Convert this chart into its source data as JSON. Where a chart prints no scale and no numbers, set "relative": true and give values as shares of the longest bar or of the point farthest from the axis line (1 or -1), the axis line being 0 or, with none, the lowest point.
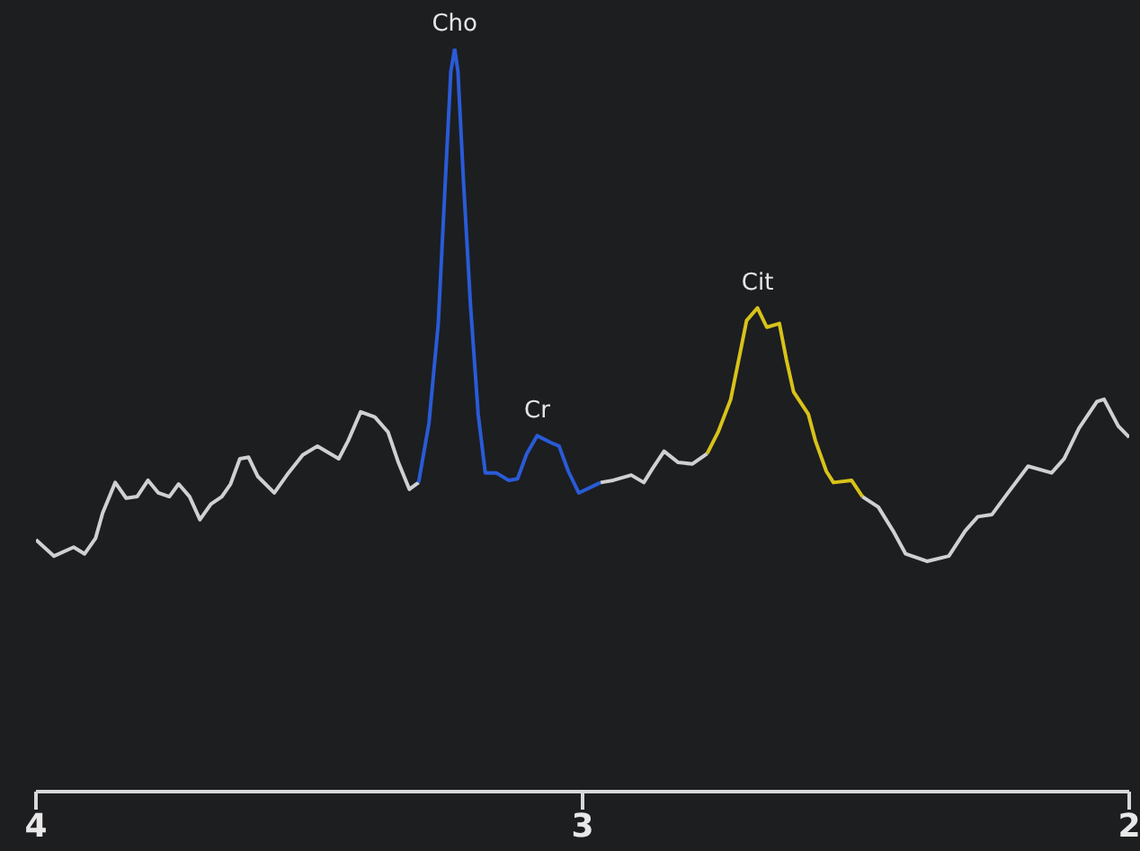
{
  "chart_data": {
    "type": "line",
    "relative": true,
    "xlim": [
      4,
      2
    ],
    "xticks": [
      4,
      3,
      2
    ],
    "marker": "none",
    "grid": false,
    "legend": false,
    "annotations": [
      {
        "text": "Cho",
        "x": 3.234,
        "y": 1
      },
      {
        "text": "Cr",
        "x": 3.083,
        "y": 0.479
      },
      {
        "text": "Cit",
        "x": 2.68,
        "y": 0.651
      }
    ],
    "series": [
      {
        "color": "#d0d0d0",
        "x": [
          4.0,
          3.967,
          3.931,
          3.911,
          3.891,
          3.878,
          3.855,
          3.835,
          3.815,
          3.795,
          3.776,
          3.756,
          3.739,
          3.719,
          3.7,
          3.68,
          3.66,
          3.644,
          3.627,
          3.611,
          3.594,
          3.564,
          3.538,
          3.512,
          3.485,
          3.446,
          3.429,
          3.406,
          3.38,
          3.356,
          3.337,
          3.317,
          3.3
        ],
        "values": [
          0.339,
          0.317,
          0.329,
          0.32,
          0.341,
          0.375,
          0.416,
          0.395,
          0.397,
          0.419,
          0.402,
          0.397,
          0.414,
          0.397,
          0.366,
          0.387,
          0.397,
          0.414,
          0.448,
          0.45,
          0.424,
          0.402,
          0.429,
          0.453,
          0.465,
          0.448,
          0.472,
          0.511,
          0.504,
          0.484,
          0.443,
          0.407,
          0.416
        ]
      },
      {
        "color": "#2a5bd7",
        "x": [
          3.3,
          3.281,
          3.264,
          3.251,
          3.241,
          3.234,
          3.228,
          3.218,
          3.205,
          3.191,
          3.178,
          3.158,
          3.135,
          3.119,
          3.102,
          3.083,
          3.059,
          3.043,
          3.026,
          3.007,
          2.967
        ],
        "values": [
          0.416,
          0.496,
          0.63,
          0.823,
          0.969,
          1,
          0.969,
          0.823,
          0.654,
          0.508,
          0.429,
          0.429,
          0.419,
          0.421,
          0.455,
          0.479,
          0.47,
          0.465,
          0.431,
          0.402,
          0.416
        ]
      },
      {
        "color": "#d0d0d0",
        "x": [
          2.967,
          2.944,
          2.911,
          2.888,
          2.871,
          2.851,
          2.825,
          2.799,
          2.772
        ],
        "values": [
          0.416,
          0.419,
          0.426,
          0.416,
          0.436,
          0.458,
          0.443,
          0.441,
          0.455
        ]
      },
      {
        "color": "#d8c21a",
        "x": [
          2.772,
          2.752,
          2.729,
          2.713,
          2.7,
          2.68,
          2.663,
          2.64,
          2.627,
          2.614,
          2.587,
          2.574,
          2.554,
          2.541,
          2.508,
          2.488
        ],
        "values": [
          0.455,
          0.484,
          0.528,
          0.586,
          0.634,
          0.651,
          0.625,
          0.63,
          0.581,
          0.538,
          0.508,
          0.472,
          0.431,
          0.416,
          0.419,
          0.397
        ]
      },
      {
        "color": "#d0d0d0",
        "x": [
          2.488,
          2.459,
          2.432,
          2.409,
          2.37,
          2.33,
          2.3,
          2.277,
          2.251,
          2.224,
          2.185,
          2.142,
          2.119,
          2.092,
          2.059,
          2.046,
          2.02,
          2.0
        ],
        "values": [
          0.397,
          0.383,
          0.351,
          0.32,
          0.31,
          0.317,
          0.351,
          0.37,
          0.373,
          0.4,
          0.438,
          0.429,
          0.448,
          0.489,
          0.525,
          0.528,
          0.492,
          0.477
        ]
      }
    ]
  }
}
